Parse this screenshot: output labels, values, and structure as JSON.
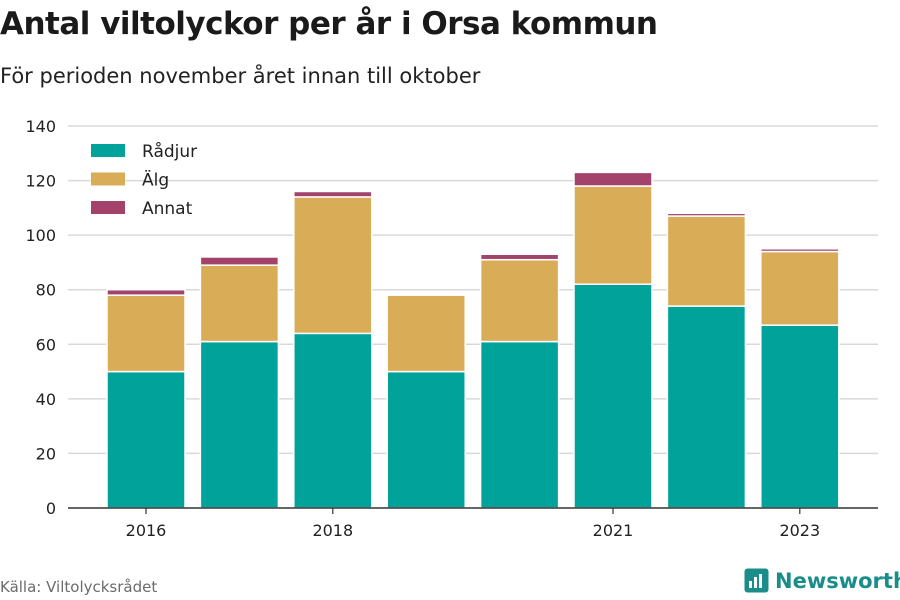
{
  "title": "Antal viltolyckor per år i Orsa kommun",
  "subtitle": "För perioden november året innan till oktober",
  "source": "Källa: Viltolycksrådet",
  "brand": "Newsworthy",
  "colors": {
    "radjur": "#00a29a",
    "alg": "#d9ad58",
    "annat": "#a3426a",
    "grid": "#d9d9d9",
    "brand": "#1a8d8b"
  },
  "chart_data": {
    "type": "bar",
    "stacked": true,
    "categories": [
      "2016",
      "2017",
      "2018",
      "2019",
      "2020",
      "2021",
      "2022",
      "2023"
    ],
    "x_tick_labels": [
      "2016",
      "",
      "2018",
      "",
      "",
      "2021",
      "",
      "2023"
    ],
    "series": [
      {
        "name": "Rådjur",
        "color": "#00a29a",
        "values": [
          50,
          61,
          64,
          50,
          61,
          82,
          74,
          67
        ]
      },
      {
        "name": "Älg",
        "color": "#d9ad58",
        "values": [
          28,
          28,
          50,
          28,
          30,
          36,
          33,
          27
        ]
      },
      {
        "name": "Annat",
        "color": "#a3426a",
        "values": [
          2,
          3,
          2,
          0,
          2,
          5,
          1,
          1
        ]
      }
    ],
    "ylim": [
      0,
      140
    ],
    "y_ticks": [
      0,
      20,
      40,
      60,
      80,
      100,
      120,
      140
    ],
    "grid": true,
    "legend_position": "top-left"
  }
}
